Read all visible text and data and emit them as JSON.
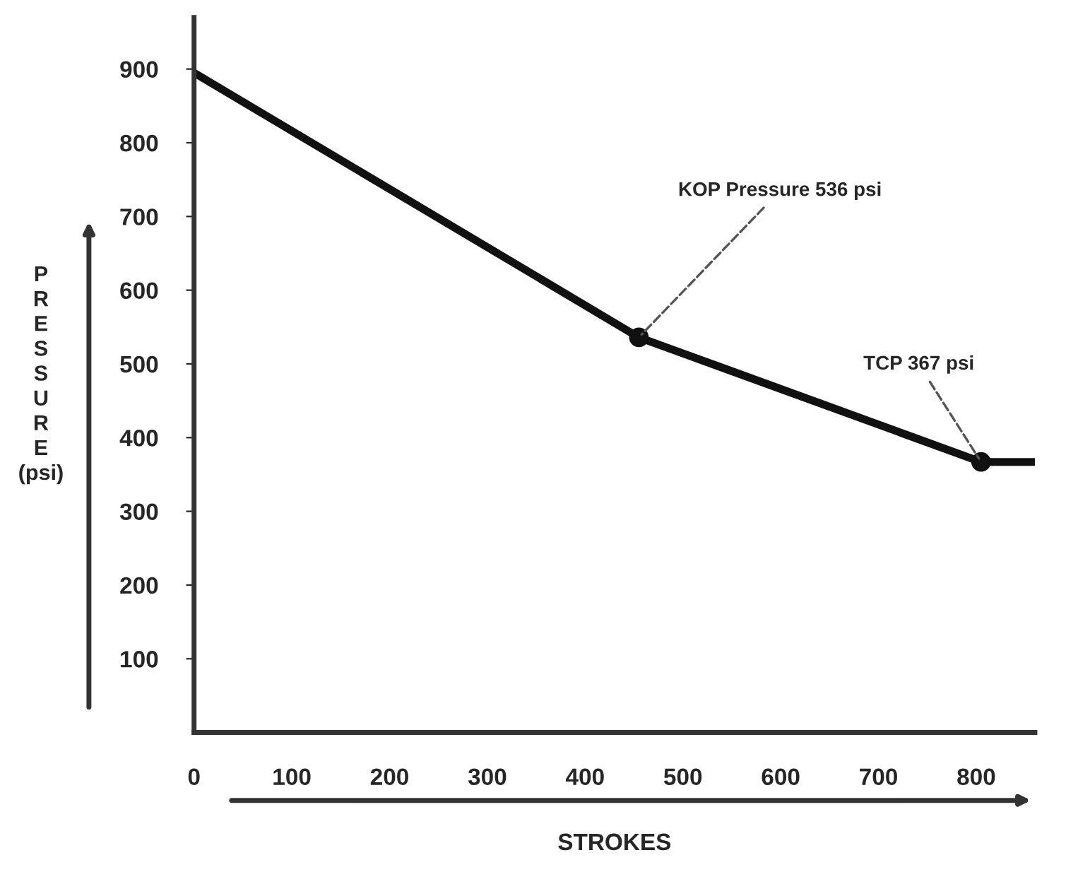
{
  "chart_data": {
    "type": "line",
    "xlabel": "STROKES",
    "ylabel": "PRESSURE (psi)",
    "x": [
      0,
      455,
      805,
      860
    ],
    "series": [
      {
        "color": "#111111",
        "values": [
          895,
          536,
          367,
          367
        ]
      }
    ],
    "xlim": [
      0,
      860
    ],
    "xticks": [
      0,
      100,
      200,
      300,
      400,
      500,
      600,
      700,
      800
    ],
    "ylim": [
      0,
      970
    ],
    "yticks": [
      100,
      200,
      300,
      400,
      500,
      600,
      700,
      800,
      900
    ],
    "grid": false,
    "annotations": [
      {
        "text": "KOP Pressure 536 psi",
        "x": 455,
        "y": 536
      },
      {
        "text": "TCP 367 psi",
        "x": 805,
        "y": 367
      }
    ]
  }
}
